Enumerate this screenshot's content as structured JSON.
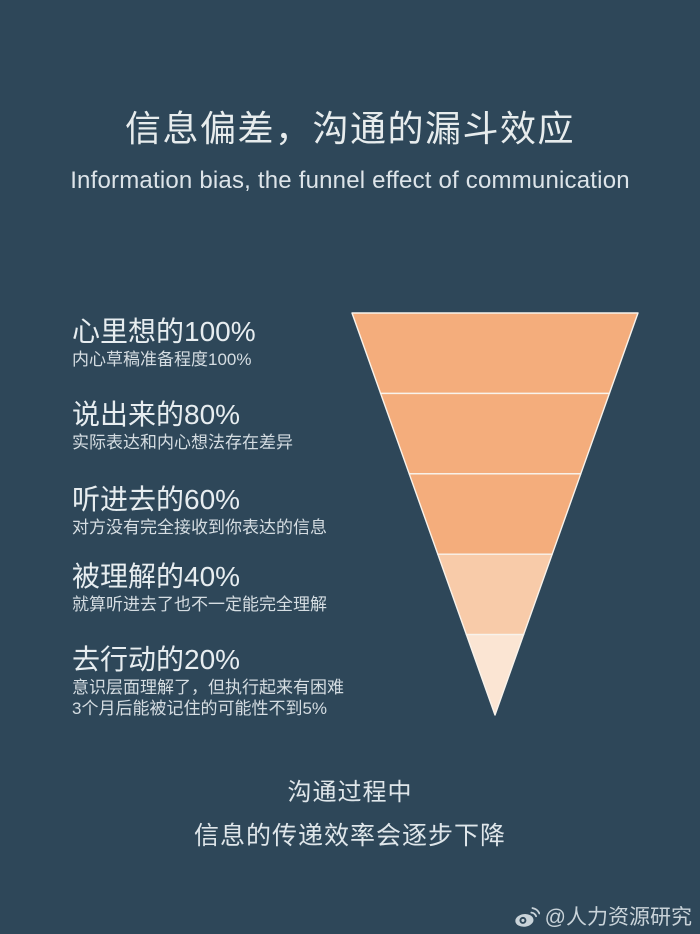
{
  "page": {
    "background_color": "#2e4759",
    "text_color": "#e3e9ec"
  },
  "header": {
    "title": "信息偏差，沟通的漏斗效应",
    "subtitle": "Information bias, the funnel effect of communication"
  },
  "chart_data": {
    "type": "funnel",
    "title": "信息偏差，沟通的漏斗效应",
    "subtitle": "Information bias, the funnel effect of communication",
    "orientation": "inverted-triangle",
    "stroke_color": "#f8f3ec",
    "items": [
      {
        "label": "心里想的100%",
        "value": 100,
        "desc": [
          "内心草稿准备程度100%"
        ],
        "color": "#f4ad7c"
      },
      {
        "label": "说出来的80%",
        "value": 80,
        "desc": [
          "实际表达和内心想法存在差异"
        ],
        "color": "#f4ad7c"
      },
      {
        "label": "听进去的60%",
        "value": 60,
        "desc": [
          "对方没有完全接收到你表达的信息"
        ],
        "color": "#f4ad7c"
      },
      {
        "label": "被理解的40%",
        "value": 40,
        "desc": [
          "就算听进去了也不一定能完全理解"
        ],
        "color": "#f8cba9"
      },
      {
        "label": "去行动的20%",
        "value": 20,
        "desc": [
          "意识层面理解了，但执行起来有困难",
          "3个月后能被记住的可能性不到5%"
        ],
        "color": "#fbe5d3"
      }
    ]
  },
  "footer": {
    "line1": "沟通过程中",
    "line2": "信息的传递效率会逐步下降"
  },
  "watermark": {
    "handle": "@人力资源研究",
    "icon": "weibo-icon"
  }
}
